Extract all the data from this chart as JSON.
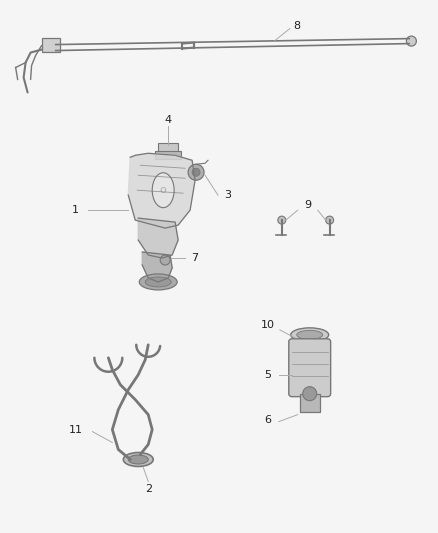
{
  "bg_color": "#f5f5f5",
  "line_color": "#aaaaaa",
  "dark_color": "#666666",
  "sketch_color": "#777777",
  "label_color": "#222222",
  "fig_width": 4.38,
  "fig_height": 5.33,
  "dpi": 100
}
